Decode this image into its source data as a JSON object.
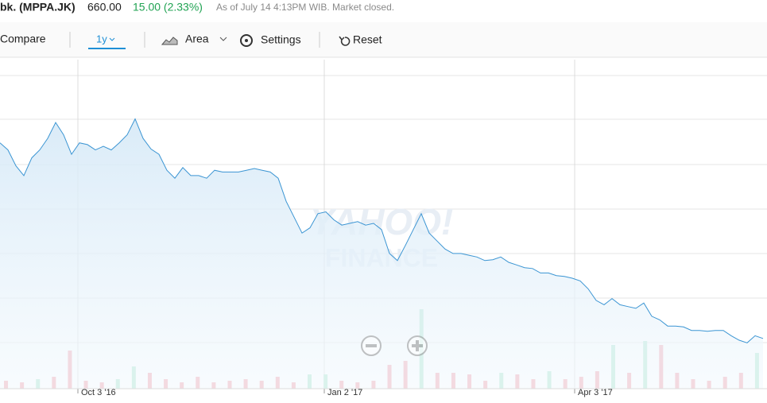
{
  "header": {
    "title": "bk. (MPPA.JK)",
    "price": "660.00",
    "change": "15.00 (2.33%)",
    "timestamp": "As of July 14 4:13PM WIB. Market closed."
  },
  "toolbar": {
    "compare": "Compare",
    "range": "1y",
    "chart_type": "Area",
    "settings": "Settings",
    "reset": "Reset"
  },
  "chart_data": {
    "type": "area",
    "color": "#3b95d3",
    "watermark": [
      "YAHOO!",
      "FINANCE"
    ],
    "values": [
      881,
      873,
      855,
      844,
      864,
      873,
      886,
      904,
      890,
      868,
      881,
      879,
      873,
      877,
      873,
      881,
      890,
      908,
      886,
      874,
      868,
      850,
      841,
      853,
      844,
      844,
      841,
      850,
      848,
      848,
      848,
      850,
      852,
      850,
      848,
      841,
      815,
      797,
      779,
      785,
      801,
      803,
      794,
      788,
      790,
      792,
      788,
      790,
      783,
      756,
      748,
      765,
      783,
      801,
      779,
      770,
      761,
      756,
      756,
      754,
      752,
      748,
      749,
      752,
      746,
      743,
      740,
      739,
      734,
      734,
      731,
      730,
      728,
      725,
      716,
      703,
      698,
      705,
      698,
      696,
      694,
      700,
      685,
      681,
      674,
      674,
      673,
      669,
      669,
      668,
      669,
      669,
      663,
      658,
      655,
      663,
      660
    ],
    "xlim": [
      0,
      96.5
    ],
    "xticks": [
      {
        "value": 9.8,
        "label": "Oct 3 '16"
      },
      {
        "value": 40.8,
        "label": "Jan 2 '17"
      },
      {
        "value": 72.3,
        "label": "Apr 3 '17"
      }
    ],
    "ylim": [
      605,
      975
    ],
    "volume": {
      "values": [
        10,
        8,
        12,
        15,
        48,
        10,
        8,
        12,
        28,
        20,
        12,
        8,
        15,
        8,
        10,
        12,
        10,
        15,
        8,
        18,
        18,
        10,
        8,
        10,
        30,
        35,
        100,
        20,
        20,
        18,
        10,
        20,
        18,
        12,
        22,
        12,
        15,
        22,
        55,
        20,
        60,
        55,
        20,
        12,
        10,
        15,
        20,
        45
      ],
      "colors": [
        "#f4aab5",
        "#f4aab5",
        "#b5e8d3",
        "#f4aab5",
        "#f4aab5",
        "#f4aab5",
        "#f4aab5",
        "#b5e8d3",
        "#b5e8d3",
        "#f4aab5",
        "#f4aab5",
        "#f4aab5",
        "#f4aab5",
        "#f4aab5",
        "#f4aab5",
        "#f4aab5",
        "#f4aab5",
        "#f4aab5",
        "#f4aab5",
        "#b5e8d3",
        "#b5e8d3",
        "#f4aab5",
        "#f4aab5",
        "#f4aab5",
        "#f4aab5",
        "#f4aab5",
        "#b5e8d3",
        "#f4aab5",
        "#f4aab5",
        "#f4aab5",
        "#f4aab5",
        "#b5e8d3",
        "#f4aab5",
        "#f4aab5",
        "#b5e8d3",
        "#f4aab5",
        "#f4aab5",
        "#f4aab5",
        "#b5e8d3",
        "#f4aab5",
        "#b5e8d3",
        "#f4aab5",
        "#f4aab5",
        "#f4aab5",
        "#f4aab5",
        "#f4aab5",
        "#f4aab5",
        "#b5e8d3"
      ],
      "ylim": [
        0,
        110
      ]
    }
  }
}
